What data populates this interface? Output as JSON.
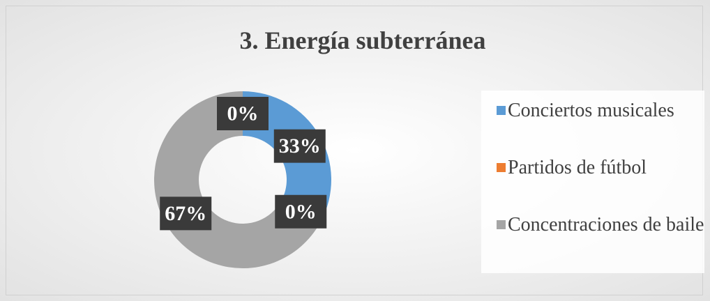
{
  "chart_data": {
    "type": "donut",
    "title": "3. Energía subterránea",
    "categories": [
      "Conciertos musicales",
      "Partidos de fútbol",
      "Concentraciones de baile",
      null
    ],
    "values": [
      33,
      0,
      67,
      0
    ],
    "value_labels": [
      "33%",
      "0%",
      "67%",
      "0%"
    ],
    "colors": [
      "#5b9bd5",
      "#ed7d31",
      "#a5a5a5",
      "#ffc000"
    ],
    "legend": "right"
  }
}
